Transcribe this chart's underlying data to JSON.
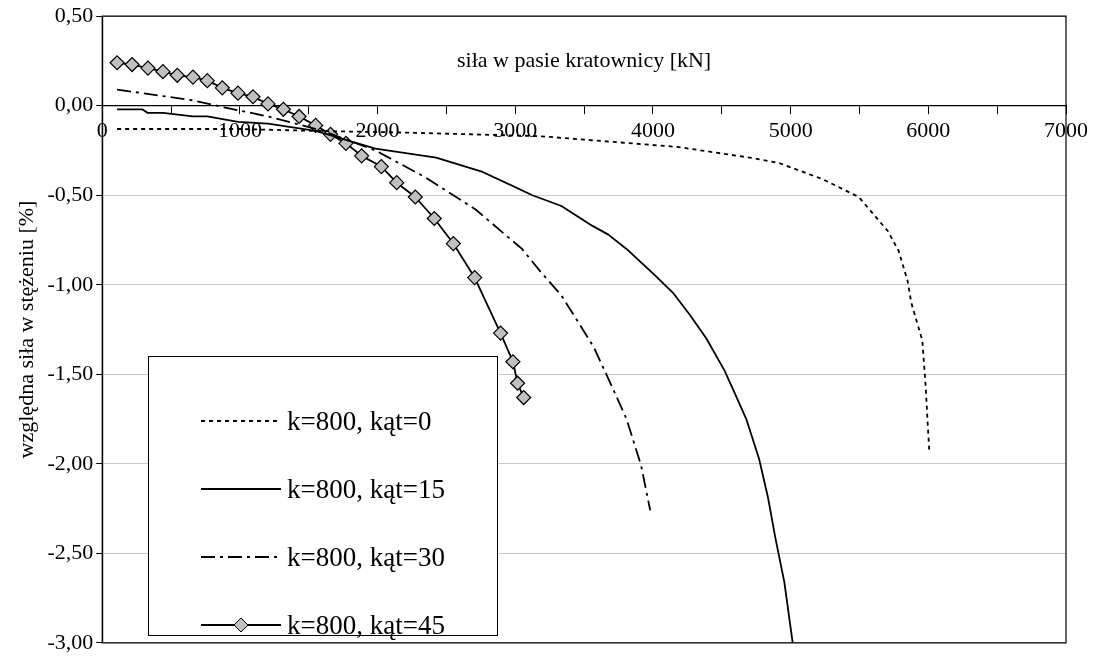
{
  "chart_data": {
    "type": "line",
    "xlabel": "siła w pasie kratownicy [kN]",
    "ylabel": "względna siła w stężeniu [%]",
    "xlim": [
      0,
      7000
    ],
    "xticks": [
      0,
      {
        "value": 500,
        "label": null
      },
      1000,
      {
        "value": 1500,
        "label": null
      },
      2000,
      {
        "value": 2500,
        "label": null
      },
      3000,
      {
        "value": 3500,
        "label": null
      },
      4000,
      {
        "value": 4500,
        "label": null
      },
      5000,
      {
        "value": 5500,
        "label": null
      },
      6000,
      {
        "value": 6500,
        "label": null
      },
      7000
    ],
    "ylim": [
      -3,
      0.5
    ],
    "yticks": [
      {
        "value": 0.5,
        "label": "0,50"
      },
      {
        "value": 0,
        "label": "0,00"
      },
      {
        "value": -0.5,
        "label": "-0,50"
      },
      {
        "value": -1,
        "label": "-1,00"
      },
      {
        "value": -1.5,
        "label": "-1,50"
      },
      {
        "value": -2,
        "label": "-2,00"
      },
      {
        "value": -2.5,
        "label": "-2,50"
      },
      {
        "value": -3,
        "label": "-3,00"
      }
    ],
    "grid": "y",
    "legend": "bottom left",
    "series": [
      {
        "name": "k=800, kąt=0",
        "color": "#000000",
        "line_style": "dotted",
        "marker": "none",
        "x": [
          108,
          1000,
          1500,
          2200,
          3175,
          4176,
          4704,
          4915,
          5231,
          5495,
          5706,
          5784,
          5850,
          5876,
          5956,
          5981,
          5995,
          6008
        ],
        "values": [
          -0.13,
          -0.13,
          -0.14,
          -0.15,
          -0.17,
          -0.23,
          -0.29,
          -0.32,
          -0.41,
          -0.51,
          -0.7,
          -0.81,
          -0.98,
          -1.1,
          -1.31,
          -1.57,
          -1.77,
          -1.94
        ]
      },
      {
        "name": "k=800, kąt=15",
        "color": "#000000",
        "line_style": "solid",
        "marker": "none",
        "x": [
          108,
          290,
          330,
          440,
          659,
          763,
          986,
          1204,
          1550,
          1984,
          2425,
          2763,
          3124,
          3335,
          3558,
          3676,
          3808,
          4019,
          4151,
          4270,
          4388,
          4520,
          4585,
          4678,
          4770,
          4836,
          4888,
          4954,
          5015
        ],
        "values": [
          -0.02,
          -0.02,
          -0.04,
          -0.04,
          -0.06,
          -0.06,
          -0.09,
          -0.1,
          -0.14,
          -0.24,
          -0.29,
          -0.37,
          -0.5,
          -0.56,
          -0.67,
          -0.72,
          -0.8,
          -0.95,
          -1.05,
          -1.17,
          -1.3,
          -1.48,
          -1.59,
          -1.75,
          -1.97,
          -2.19,
          -2.41,
          -2.66,
          -3.0
        ]
      },
      {
        "name": "k=800, kąt=30",
        "color": "#000000",
        "line_style": "dashdot",
        "marker": "none",
        "x": [
          108,
          659,
          893,
          1204,
          1601,
          1984,
          2347,
          2712,
          3049,
          3176,
          3335,
          3466,
          3571,
          3703,
          3808,
          3914,
          3980
        ],
        "values": [
          0.09,
          0.03,
          -0.01,
          -0.06,
          -0.14,
          -0.25,
          -0.4,
          -0.58,
          -0.8,
          -0.92,
          -1.06,
          -1.22,
          -1.35,
          -1.57,
          -1.75,
          -2.01,
          -2.26
        ]
      },
      {
        "name": "k=800, kąt=45",
        "color": "#000000",
        "line_style": "solid",
        "marker": "diamond",
        "x": [
          108,
          217,
          332,
          441,
          545,
          659,
          763,
          872,
          986,
          1095,
          1204,
          1316,
          1430,
          1550,
          1658,
          1770,
          1884,
          2027,
          2139,
          2274,
          2412,
          2550,
          2705,
          2893,
          2983,
          3017,
          3061
        ],
        "values": [
          0.24,
          0.23,
          0.21,
          0.19,
          0.17,
          0.16,
          0.14,
          0.1,
          0.07,
          0.05,
          0.01,
          -0.02,
          -0.06,
          -0.11,
          -0.16,
          -0.21,
          -0.28,
          -0.34,
          -0.43,
          -0.51,
          -0.63,
          -0.77,
          -0.96,
          -1.27,
          -1.43,
          -1.55,
          -1.63
        ]
      }
    ]
  }
}
